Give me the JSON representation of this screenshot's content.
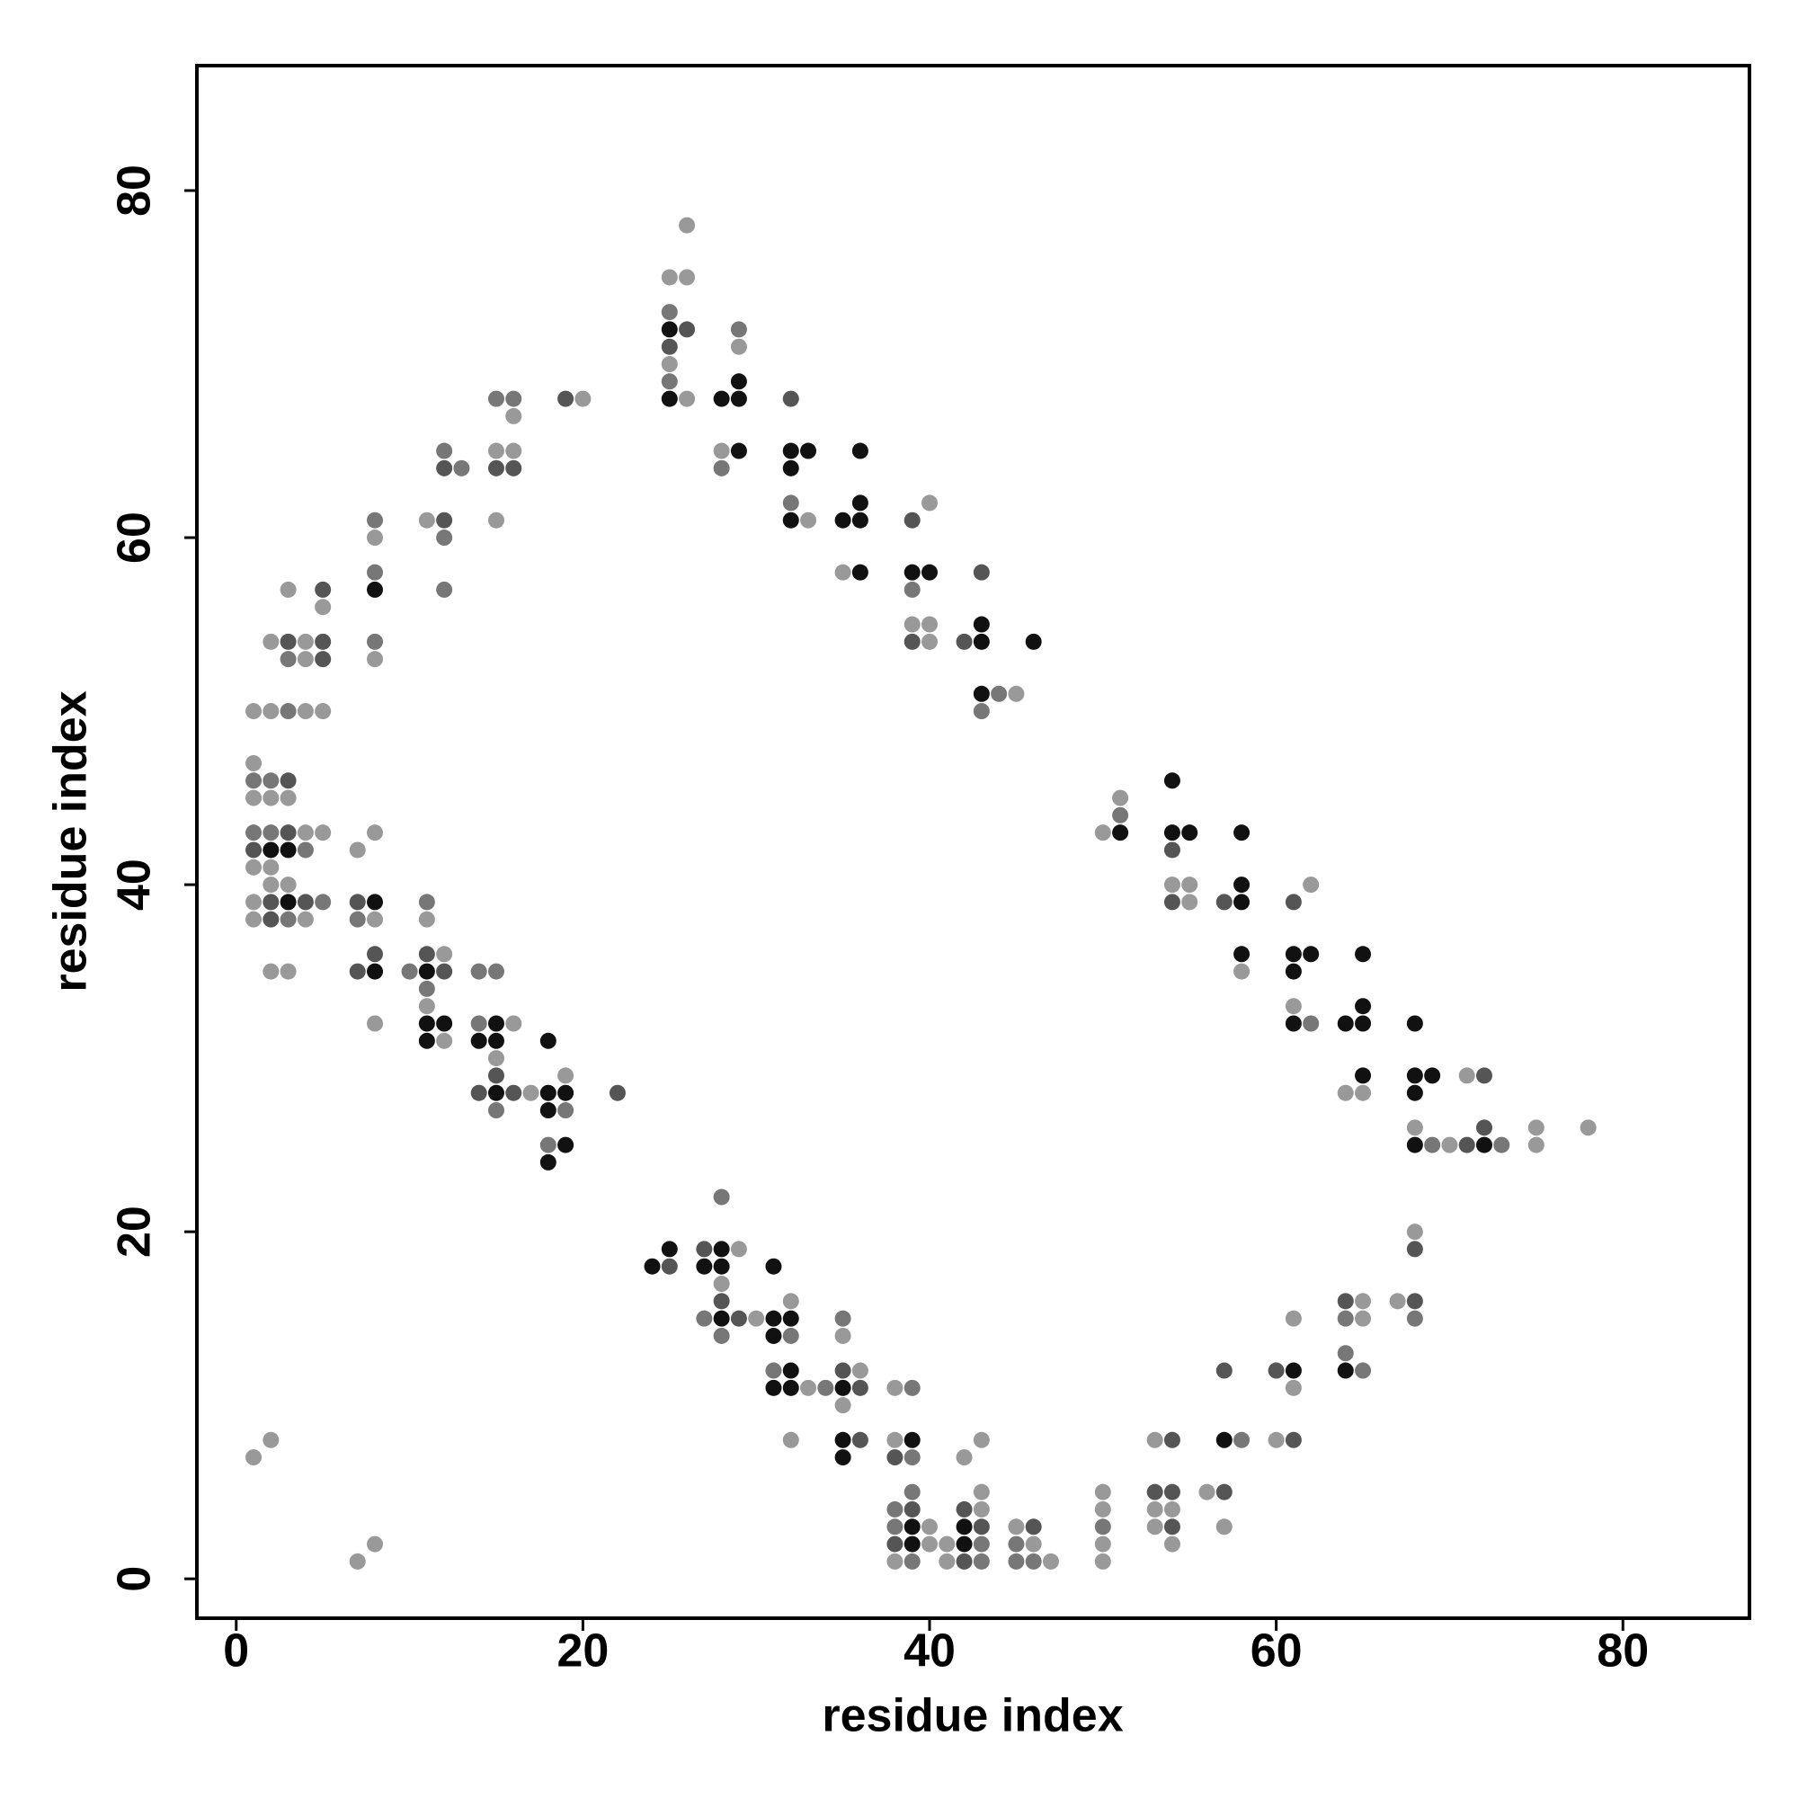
{
  "chart_data": {
    "type": "scatter",
    "xlabel": "residue index",
    "ylabel": "residue index",
    "xlim": [
      -2.27,
      87.3
    ],
    "ylim": [
      -2.27,
      87.2
    ],
    "xticks": [
      0,
      20,
      40,
      60,
      80
    ],
    "yticks": [
      0,
      20,
      40,
      60,
      80
    ],
    "x": [
      26,
      25,
      26,
      25,
      25,
      26,
      25,
      25,
      25,
      25,
      26,
      29,
      29,
      29,
      28,
      29,
      28,
      29,
      28,
      19,
      20,
      15,
      16,
      16,
      15,
      16,
      15,
      16,
      15,
      12,
      12,
      13,
      11,
      12,
      12,
      12,
      8,
      8,
      8,
      8,
      8,
      8,
      3,
      5,
      5,
      2,
      3,
      4,
      5,
      3,
      4,
      5,
      1,
      2,
      3,
      4,
      5,
      1,
      1,
      2,
      3,
      1,
      2,
      3,
      1,
      2,
      3,
      4,
      5,
      1,
      2,
      3,
      4,
      1,
      2,
      2,
      3,
      1,
      2,
      3,
      4,
      5,
      1,
      2,
      3,
      4,
      2,
      3,
      7,
      8,
      7,
      8,
      7,
      8,
      8,
      7,
      8,
      8,
      11,
      11,
      10,
      11,
      12,
      11,
      12,
      11,
      11,
      11,
      12,
      11,
      12,
      14,
      15,
      14,
      15,
      16,
      14,
      15,
      15,
      15,
      14,
      15,
      16,
      17,
      15,
      18,
      18,
      19,
      19,
      18,
      19,
      18,
      19,
      18,
      22,
      1,
      2,
      7,
      8,
      24,
      25,
      25,
      27,
      28,
      29,
      27,
      28,
      28,
      28,
      28,
      27,
      28,
      29,
      30,
      28,
      31,
      32,
      31,
      32,
      31,
      32,
      31,
      32,
      31,
      32,
      33,
      34,
      35,
      36,
      32,
      35,
      35,
      35,
      36,
      35,
      35,
      36,
      35,
      38,
      39,
      38,
      39,
      38,
      39,
      42,
      43,
      39,
      38,
      39,
      38,
      39,
      40,
      38,
      39,
      40,
      41,
      38,
      39,
      41,
      42,
      43,
      43,
      42,
      43,
      42,
      43,
      42,
      43,
      45,
      46,
      45,
      46,
      45,
      46,
      47,
      50,
      50,
      50,
      50,
      50,
      53,
      54,
      53,
      54,
      53,
      54,
      53,
      54,
      54,
      56,
      57,
      57,
      57,
      57,
      58,
      60,
      61,
      61,
      61,
      60,
      61,
      64,
      65,
      64,
      65,
      64,
      64,
      65,
      67,
      68,
      68,
      68,
      68,
      68,
      68,
      69,
      70,
      71,
      72,
      73,
      75,
      72,
      75,
      78,
      71,
      72,
      68,
      68,
      69,
      68,
      64,
      65,
      65,
      65,
      65,
      64,
      65,
      61,
      62,
      61,
      62,
      61,
      61,
      61,
      62,
      58,
      57,
      58,
      58,
      58,
      58,
      54,
      54,
      55,
      54,
      54,
      55,
      54,
      55,
      50,
      51,
      51,
      51,
      43,
      39,
      40,
      39,
      40,
      39,
      39,
      40,
      39,
      40,
      42,
      43,
      43,
      46,
      43,
      44,
      45,
      43,
      32,
      32,
      33,
      32,
      36,
      32,
      32,
      33,
      35,
      36,
      36,
      35,
      36
    ],
    "values": [
      78,
      75,
      75,
      73,
      72,
      72,
      71,
      70,
      69,
      68,
      68,
      72,
      71,
      69,
      68,
      68,
      65,
      65,
      64,
      68,
      68,
      68,
      68,
      67,
      65,
      65,
      64,
      64,
      61,
      65,
      64,
      64,
      61,
      61,
      60,
      57,
      61,
      60,
      58,
      57,
      54,
      53,
      57,
      57,
      56,
      54,
      54,
      54,
      54,
      53,
      53,
      53,
      50,
      50,
      50,
      50,
      50,
      47,
      46,
      46,
      46,
      45,
      45,
      45,
      43,
      43,
      43,
      43,
      43,
      42,
      42,
      42,
      42,
      41,
      41,
      40,
      40,
      39,
      39,
      39,
      39,
      39,
      38,
      38,
      38,
      38,
      35,
      35,
      42,
      43,
      39,
      39,
      38,
      38,
      36,
      35,
      35,
      32,
      39,
      38,
      35,
      36,
      36,
      35,
      35,
      34,
      33,
      32,
      32,
      31,
      31,
      35,
      35,
      32,
      32,
      32,
      31,
      31,
      30,
      29,
      28,
      28,
      28,
      28,
      27,
      31,
      28,
      28,
      29,
      27,
      27,
      25,
      25,
      24,
      28,
      7,
      8,
      1,
      2,
      18,
      19,
      18,
      19,
      19,
      19,
      18,
      18,
      22,
      17,
      16,
      15,
      15,
      15,
      15,
      14,
      18,
      16,
      15,
      15,
      14,
      14,
      12,
      12,
      11,
      11,
      11,
      11,
      11,
      11,
      8,
      15,
      14,
      12,
      12,
      10,
      8,
      8,
      7,
      11,
      11,
      8,
      8,
      7,
      7,
      7,
      8,
      5,
      4,
      4,
      3,
      3,
      3,
      2,
      2,
      2,
      2,
      1,
      1,
      1,
      4,
      4,
      5,
      3,
      3,
      2,
      2,
      1,
      1,
      3,
      3,
      2,
      2,
      1,
      1,
      1,
      5,
      4,
      3,
      2,
      1,
      8,
      8,
      5,
      5,
      4,
      4,
      3,
      3,
      2,
      5,
      5,
      3,
      12,
      8,
      8,
      12,
      12,
      15,
      11,
      8,
      8,
      16,
      16,
      15,
      15,
      13,
      12,
      12,
      16,
      16,
      15,
      20,
      19,
      26,
      25,
      25,
      25,
      25,
      25,
      25,
      25,
      26,
      26,
      26,
      29,
      29,
      32,
      29,
      29,
      28,
      32,
      32,
      33,
      36,
      29,
      28,
      28,
      39,
      40,
      36,
      36,
      35,
      33,
      32,
      32,
      43,
      39,
      39,
      40,
      36,
      35,
      46,
      43,
      43,
      42,
      40,
      40,
      39,
      39,
      43,
      45,
      44,
      43,
      58,
      61,
      62,
      58,
      58,
      57,
      55,
      55,
      54,
      54,
      54,
      55,
      54,
      54,
      51,
      51,
      51,
      50,
      68,
      65,
      65,
      64,
      65,
      62,
      61,
      61,
      61,
      61,
      62,
      58,
      58
    ],
    "colors": [
      "#999",
      "#999",
      "#999",
      "#777",
      "#111",
      "#555",
      "#555",
      "#999",
      "#777",
      "#111",
      "#999",
      "#777",
      "#999",
      "#111",
      "#111",
      "#111",
      "#999",
      "#111",
      "#777",
      "#555",
      "#999",
      "#777",
      "#777",
      "#999",
      "#999",
      "#999",
      "#555",
      "#555",
      "#999",
      "#777",
      "#555",
      "#777",
      "#999",
      "#555",
      "#777",
      "#777",
      "#777",
      "#999",
      "#777",
      "#111",
      "#777",
      "#999",
      "#999",
      "#555",
      "#999",
      "#999",
      "#555",
      "#999",
      "#555",
      "#777",
      "#999",
      "#555",
      "#999",
      "#999",
      "#777",
      "#999",
      "#999",
      "#999",
      "#777",
      "#777",
      "#555",
      "#999",
      "#999",
      "#999",
      "#777",
      "#777",
      "#555",
      "#999",
      "#999",
      "#555",
      "#111",
      "#111",
      "#777",
      "#999",
      "#999",
      "#999",
      "#999",
      "#999",
      "#555",
      "#111",
      "#555",
      "#777",
      "#999",
      "#555",
      "#777",
      "#999",
      "#999",
      "#999",
      "#999",
      "#999",
      "#555",
      "#111",
      "#777",
      "#999",
      "#555",
      "#555",
      "#111",
      "#999",
      "#777",
      "#999",
      "#777",
      "#555",
      "#999",
      "#111",
      "#555",
      "#777",
      "#999",
      "#111",
      "#111",
      "#111",
      "#999",
      "#777",
      "#777",
      "#777",
      "#111",
      "#999",
      "#111",
      "#111",
      "#999",
      "#555",
      "#555",
      "#111",
      "#555",
      "#999",
      "#777",
      "#111",
      "#111",
      "#111",
      "#999",
      "#111",
      "#777",
      "#777",
      "#111",
      "#111",
      "#555",
      "#999",
      "#999",
      "#999",
      "#999",
      "#111",
      "#111",
      "#555",
      "#555",
      "#111",
      "#999",
      "#111",
      "#111",
      "#777",
      "#999",
      "#555",
      "#777",
      "#111",
      "#555",
      "#999",
      "#777",
      "#111",
      "#999",
      "#111",
      "#111",
      "#111",
      "#777",
      "#777",
      "#111",
      "#111",
      "#111",
      "#999",
      "#777",
      "#111",
      "#555",
      "#999",
      "#777",
      "#999",
      "#555",
      "#999",
      "#999",
      "#111",
      "#555",
      "#111",
      "#999",
      "#777",
      "#999",
      "#111",
      "#555",
      "#777",
      "#999",
      "#999",
      "#777",
      "#777",
      "#555",
      "#777",
      "#111",
      "#999",
      "#555",
      "#111",
      "#999",
      "#999",
      "#999",
      "#777",
      "#999",
      "#555",
      "#999",
      "#999",
      "#111",
      "#555",
      "#111",
      "#777",
      "#555",
      "#777",
      "#999",
      "#555",
      "#777",
      "#999",
      "#777",
      "#777",
      "#999",
      "#999",
      "#999",
      "#777",
      "#999",
      "#999",
      "#999",
      "#555",
      "#555",
      "#555",
      "#999",
      "#999",
      "#999",
      "#555",
      "#999",
      "#999",
      "#555",
      "#999",
      "#555",
      "#111",
      "#777",
      "#555",
      "#111",
      "#999",
      "#999",
      "#999",
      "#555",
      "#555",
      "#999",
      "#777",
      "#999",
      "#777",
      "#111",
      "#777",
      "#999",
      "#555",
      "#777",
      "#999",
      "#555",
      "#999",
      "#111",
      "#777",
      "#999",
      "#555",
      "#111",
      "#777",
      "#999",
      "#555",
      "#999",
      "#999",
      "#999",
      "#555",
      "#111",
      "#111",
      "#111",
      "#111",
      "#111",
      "#111",
      "#111",
      "#111",
      "#111",
      "#999",
      "#999",
      "#555",
      "#999",
      "#111",
      "#111",
      "#111",
      "#999",
      "#111",
      "#777",
      "#111",
      "#555",
      "#111",
      "#111",
      "#111",
      "#999",
      "#111",
      "#111",
      "#111",
      "#555",
      "#999",
      "#999",
      "#555",
      "#999",
      "#999",
      "#999",
      "#777",
      "#111",
      "#555",
      "#555",
      "#999",
      "#111",
      "#111",
      "#777",
      "#999",
      "#999",
      "#555",
      "#999",
      "#555",
      "#111",
      "#111",
      "#111",
      "#111",
      "#777",
      "#999",
      "#777",
      "#555",
      "#111",
      "#111",
      "#111",
      "#111",
      "#777",
      "#111",
      "#999",
      "#111",
      "#111",
      "#111",
      "#999",
      "#111"
    ]
  }
}
